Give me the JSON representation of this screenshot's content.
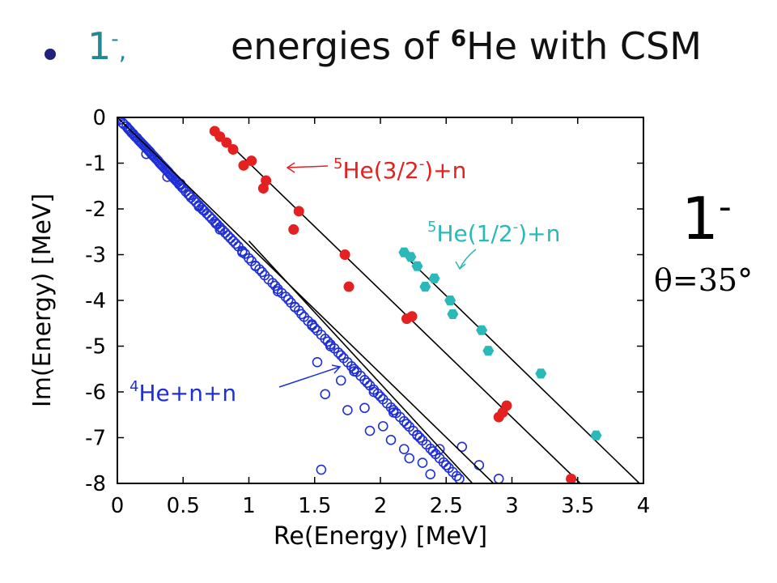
{
  "slide": {
    "state_label": "1",
    "state_parity": "-",
    "state_sep": ",",
    "title_prefix": "energies of ",
    "title_mass": "6",
    "title_suffix": "He with CSM",
    "side_state": "1",
    "side_parity": "-",
    "side_theta": "θ=35°"
  },
  "chart_data": {
    "type": "scatter",
    "xlabel": "Re(Energy) [MeV]",
    "ylabel": "Im(Energy) [MeV]",
    "xlim": [
      0,
      4
    ],
    "ylim": [
      -8,
      0
    ],
    "xticks": [
      "0",
      "0.5",
      "1",
      "1.5",
      "2",
      "2.5",
      "3",
      "3.5",
      "4"
    ],
    "yticks": [
      "0",
      "-1",
      "-2",
      "-3",
      "-4",
      "-5",
      "-6",
      "-7",
      "-8"
    ],
    "grid": false,
    "colors": {
      "three_body": "#1f2fd6",
      "he5_32": "#e52020",
      "he5_12": "#2bb8b8",
      "line": "#000000"
    },
    "lines": [
      {
        "x": [
          0.0,
          2.86
        ],
        "y": [
          0.0,
          -8.0
        ]
      },
      {
        "x": [
          0.75,
          3.52
        ],
        "y": [
          -0.3,
          -8.0
        ]
      },
      {
        "x": [
          2.16,
          3.97
        ],
        "y": [
          -2.95,
          -8.0
        ]
      },
      {
        "x": [
          1.0,
          2.7
        ],
        "y": [
          -2.7,
          -8.0
        ]
      }
    ],
    "series": [
      {
        "label_mass": "4",
        "label_text": "He+n+n",
        "marker": "open-circle",
        "x": [
          0.02,
          0.04,
          0.05,
          0.07,
          0.08,
          0.09,
          0.1,
          0.11,
          0.12,
          0.13,
          0.14,
          0.15,
          0.16,
          0.17,
          0.18,
          0.19,
          0.2,
          0.21,
          0.22,
          0.23,
          0.24,
          0.25,
          0.26,
          0.27,
          0.28,
          0.29,
          0.3,
          0.31,
          0.32,
          0.33,
          0.34,
          0.35,
          0.36,
          0.37,
          0.38,
          0.39,
          0.4,
          0.41,
          0.42,
          0.43,
          0.44,
          0.45,
          0.46,
          0.47,
          0.48,
          0.49,
          0.5,
          0.52,
          0.54,
          0.55,
          0.56,
          0.58,
          0.6,
          0.62,
          0.64,
          0.65,
          0.66,
          0.68,
          0.7,
          0.72,
          0.74,
          0.75,
          0.76,
          0.78,
          0.8,
          0.82,
          0.84,
          0.86,
          0.88,
          0.9,
          0.92,
          0.95,
          0.97,
          1.0,
          1.02,
          1.05,
          1.08,
          1.1,
          1.12,
          1.15,
          1.18,
          1.2,
          1.22,
          1.25,
          1.28,
          1.3,
          1.32,
          1.35,
          1.38,
          1.4,
          1.42,
          1.45,
          1.48,
          1.5,
          1.52,
          1.55,
          1.58,
          1.6,
          1.62,
          1.65,
          1.68,
          1.7,
          1.72,
          1.75,
          1.78,
          1.8,
          1.82,
          1.85,
          1.88,
          1.9,
          1.92,
          1.95,
          1.98,
          2.0,
          2.02,
          2.05,
          2.08,
          2.1,
          2.12,
          2.15,
          2.18,
          2.2,
          2.22,
          2.25,
          2.28,
          2.3,
          2.32,
          2.35,
          2.38,
          2.4,
          2.42,
          2.45,
          2.48,
          2.5,
          2.52,
          2.55,
          2.58,
          2.6,
          0.22,
          0.38,
          0.48,
          0.62,
          0.78,
          0.95,
          1.05,
          1.22,
          1.35,
          1.48,
          1.62,
          1.8,
          1.95,
          2.1,
          2.28,
          1.52,
          1.7,
          1.88,
          2.02,
          2.18,
          2.32,
          2.45,
          2.62,
          2.75,
          2.9,
          1.58,
          1.75,
          1.92,
          2.08,
          2.22,
          2.38,
          1.55
        ],
        "y": [
          -0.05,
          -0.12,
          -0.15,
          -0.2,
          -0.24,
          -0.27,
          -0.3,
          -0.34,
          -0.36,
          -0.4,
          -0.43,
          -0.45,
          -0.49,
          -0.52,
          -0.55,
          -0.58,
          -0.61,
          -0.64,
          -0.67,
          -0.7,
          -0.73,
          -0.76,
          -0.8,
          -0.83,
          -0.86,
          -0.89,
          -0.92,
          -0.95,
          -0.99,
          -1.02,
          -1.05,
          -1.08,
          -1.11,
          -1.14,
          -1.17,
          -1.2,
          -1.24,
          -1.27,
          -1.3,
          -1.33,
          -1.36,
          -1.39,
          -1.42,
          -1.46,
          -1.48,
          -1.52,
          -1.55,
          -1.62,
          -1.68,
          -1.7,
          -1.75,
          -1.8,
          -1.86,
          -1.92,
          -1.98,
          -2.02,
          -2.04,
          -2.1,
          -2.16,
          -2.22,
          -2.28,
          -2.32,
          -2.34,
          -2.4,
          -2.46,
          -2.52,
          -2.58,
          -2.64,
          -2.7,
          -2.76,
          -2.82,
          -2.92,
          -2.98,
          -3.08,
          -3.14,
          -3.24,
          -3.32,
          -3.38,
          -3.45,
          -3.54,
          -3.62,
          -3.68,
          -3.75,
          -3.84,
          -3.92,
          -3.98,
          -4.05,
          -4.14,
          -4.22,
          -4.3,
          -4.36,
          -4.45,
          -4.52,
          -4.6,
          -4.66,
          -4.75,
          -4.84,
          -4.9,
          -4.96,
          -5.05,
          -5.14,
          -5.2,
          -5.26,
          -5.35,
          -5.44,
          -5.5,
          -5.56,
          -5.65,
          -5.74,
          -5.8,
          -5.86,
          -5.95,
          -6.04,
          -6.1,
          -6.16,
          -6.25,
          -6.34,
          -6.4,
          -6.46,
          -6.55,
          -6.64,
          -6.7,
          -6.76,
          -6.85,
          -6.94,
          -7.0,
          -7.06,
          -7.15,
          -7.24,
          -7.3,
          -7.36,
          -7.45,
          -7.54,
          -7.6,
          -7.66,
          -7.75,
          -7.84,
          -7.9,
          -0.8,
          -1.3,
          -1.45,
          -1.95,
          -2.45,
          -2.95,
          -3.25,
          -3.8,
          -4.15,
          -4.55,
          -5.0,
          -5.55,
          -6.0,
          -6.45,
          -6.95,
          -5.35,
          -5.75,
          -6.35,
          -6.75,
          -7.25,
          -7.55,
          -7.25,
          -7.2,
          -7.6,
          -7.9,
          -6.05,
          -6.4,
          -6.85,
          -7.05,
          -7.45,
          -7.8,
          -7.7
        ]
      },
      {
        "label_mass": "5",
        "label_text": "He(3/2",
        "label_parity": "-",
        "label_tail": ")+n",
        "marker": "filled-circle",
        "x": [
          0.74,
          0.78,
          0.83,
          0.88,
          0.96,
          1.02,
          1.11,
          1.13,
          1.34,
          1.38,
          1.73,
          1.76,
          2.2,
          2.24,
          2.9,
          2.93,
          2.96,
          3.45
        ],
        "y": [
          -0.3,
          -0.42,
          -0.55,
          -0.7,
          -1.05,
          -0.95,
          -1.55,
          -1.38,
          -2.45,
          -2.05,
          -3.0,
          -3.7,
          -4.4,
          -4.35,
          -6.55,
          -6.45,
          -6.3,
          -7.9
        ]
      },
      {
        "label_mass": "5",
        "label_text": "He(1/2",
        "label_parity": "-",
        "label_tail": ")+n",
        "marker": "filled-hexagon",
        "x": [
          2.18,
          2.23,
          2.28,
          2.34,
          2.41,
          2.53,
          2.55,
          2.77,
          2.82,
          3.22,
          3.64
        ],
        "y": [
          -2.95,
          -3.05,
          -3.25,
          -3.7,
          -3.52,
          -4.0,
          -4.3,
          -4.65,
          -5.1,
          -5.6,
          -6.95
        ]
      }
    ]
  }
}
